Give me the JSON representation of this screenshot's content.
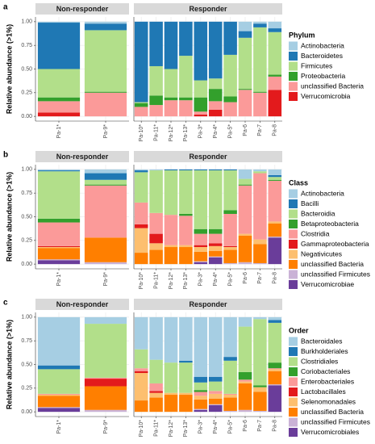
{
  "chart_data": [
    {
      "type": "bar",
      "panel_label": "a",
      "ylabel": "Relative abundance (>1%)",
      "legend_title": "Phylum",
      "facets": [
        {
          "name": "Non-responder",
          "categories": [
            "Pa-1*",
            "Pa-9*"
          ]
        },
        {
          "name": "Responder",
          "categories": [
            "Pa-10*",
            "Pa-11*",
            "Pa-12*",
            "Pa-13*",
            "Pa-3*",
            "Pa-4*",
            "Pa-5*",
            "Pa-6",
            "Pa-7",
            "Pa-8"
          ]
        }
      ],
      "ylim": [
        -0.05,
        1.05
      ],
      "yticks": [
        {
          "value": 0,
          "label": "0.00"
        },
        {
          "value": 0.25,
          "label": "0.25"
        },
        {
          "value": 0.5,
          "label": "0.50"
        },
        {
          "value": 0.75,
          "label": "0.75"
        },
        {
          "value": 1,
          "label": "1.00"
        }
      ],
      "series": [
        {
          "name": "Actinobacteria",
          "color": "#a6cee3",
          "values": [
            0.01,
            0.02,
            0,
            0,
            0,
            0,
            0,
            0,
            0,
            0.1,
            0.02,
            0.07
          ]
        },
        {
          "name": "Bacteroidetes",
          "color": "#1f78b4",
          "values": [
            0.49,
            0.07,
            0.85,
            0.47,
            0.5,
            0.36,
            0.62,
            0.6,
            0.35,
            0.07,
            0.04,
            0.04
          ]
        },
        {
          "name": "Firmicutes",
          "color": "#b2df8a",
          "values": [
            0.3,
            0.65,
            0.01,
            0.31,
            0.3,
            0.44,
            0.18,
            0.11,
            0.44,
            0.54,
            0.68,
            0.45
          ]
        },
        {
          "name": "Proteobacteria",
          "color": "#33a02c",
          "values": [
            0.04,
            0.01,
            0.04,
            0.1,
            0.03,
            0.03,
            0.15,
            0.13,
            0.06,
            0.01,
            0.01,
            0.02
          ]
        },
        {
          "name": "unclassified Bacteria",
          "color": "#fb9a99",
          "values": [
            0.12,
            0.25,
            0.1,
            0.12,
            0.17,
            0.17,
            0.03,
            0.09,
            0.15,
            0.28,
            0.25,
            0.14
          ]
        },
        {
          "name": "Verrucomicrobia",
          "color": "#e31a1c",
          "values": [
            0.04,
            0,
            0,
            0,
            0,
            0,
            0.02,
            0.07,
            0,
            0,
            0,
            0.28
          ]
        }
      ]
    },
    {
      "type": "bar",
      "panel_label": "b",
      "ylabel": "Relative abundance (>1%)",
      "legend_title": "Class",
      "facets": [
        {
          "name": "Non-responder",
          "categories": [
            "Pa-1*",
            "Pa-9*"
          ]
        },
        {
          "name": "Responder",
          "categories": [
            "Pa-10*",
            "Pa-11*",
            "Pa-12*",
            "Pa-13*",
            "Pa-3*",
            "Pa-4*",
            "Pa-5*",
            "Pa-6",
            "Pa-7",
            "Pa-8"
          ]
        }
      ],
      "ylim": [
        -0.05,
        1.05
      ],
      "yticks": [
        {
          "value": 0,
          "label": "0.00"
        },
        {
          "value": 0.25,
          "label": "0.25"
        },
        {
          "value": 0.5,
          "label": "0.50"
        },
        {
          "value": 0.75,
          "label": "0.75"
        },
        {
          "value": 1,
          "label": "1.00"
        }
      ],
      "series": [
        {
          "name": "Actinobacteria",
          "color": "#a6cee3",
          "values": [
            0.01,
            0.04,
            0.01,
            0.01,
            0,
            0,
            0,
            0,
            0,
            0.1,
            0.02,
            0.06
          ]
        },
        {
          "name": "Bacilli",
          "color": "#1f78b4",
          "values": [
            0.01,
            0.07,
            0.02,
            0,
            0.01,
            0.01,
            0.01,
            0.01,
            0.01,
            0,
            0,
            0.02
          ]
        },
        {
          "name": "Bacteroidia",
          "color": "#b2df8a",
          "values": [
            0.5,
            0.05,
            0.32,
            0.45,
            0.47,
            0.46,
            0.62,
            0.62,
            0.42,
            0.06,
            0.02,
            0.03
          ]
        },
        {
          "name": "Betaproteobacteria",
          "color": "#33a02c",
          "values": [
            0.04,
            0.01,
            0,
            0,
            0,
            0.02,
            0.05,
            0.05,
            0.04,
            0.01,
            0,
            0.01
          ]
        },
        {
          "name": "Clostridia",
          "color": "#fb9a99",
          "values": [
            0.25,
            0.55,
            0.23,
            0.22,
            0.32,
            0.31,
            0.12,
            0.1,
            0.34,
            0.51,
            0.7,
            0.43
          ]
        },
        {
          "name": "Gammaproteobacteria",
          "color": "#e31a1c",
          "values": [
            0.01,
            0,
            0.04,
            0.1,
            0,
            0,
            0.02,
            0.03,
            0.01,
            0,
            0,
            0
          ]
        },
        {
          "name": "Negativicutes",
          "color": "#fdbf6f",
          "values": [
            0.01,
            0,
            0.26,
            0.07,
            0.02,
            0.02,
            0.05,
            0.05,
            0.03,
            0.02,
            0.05,
            0.02
          ]
        },
        {
          "name": "unclassified Bacteria",
          "color": "#ff7f00",
          "values": [
            0.12,
            0.26,
            0.12,
            0.15,
            0.18,
            0.18,
            0.1,
            0.06,
            0.14,
            0.28,
            0.2,
            0.14
          ]
        },
        {
          "name": "unclassified Firmicutes",
          "color": "#cab2d6",
          "values": [
            0.01,
            0.02,
            0,
            0,
            0,
            0,
            0.01,
            0.01,
            0.01,
            0.02,
            0.01,
            0.01
          ]
        },
        {
          "name": "Verrucomicrobiae",
          "color": "#6a3d9a",
          "values": [
            0.04,
            0,
            0,
            0,
            0,
            0,
            0.02,
            0.07,
            0,
            0,
            0,
            0.28
          ]
        }
      ]
    },
    {
      "type": "bar",
      "panel_label": "c",
      "ylabel": "Relative abundance (>1%)",
      "legend_title": "Order",
      "facets": [
        {
          "name": "Non-responder",
          "categories": [
            "Pa-1*",
            "Pa-9*"
          ]
        },
        {
          "name": "Responder",
          "categories": [
            "Pa-10*",
            "Pa-11*",
            "Pa-12*",
            "Pa-13*",
            "Pa-3*",
            "Pa-4*",
            "Pa-5*",
            "Pa-6",
            "Pa-7",
            "Pa-8"
          ]
        }
      ],
      "ylim": [
        -0.05,
        1.05
      ],
      "yticks": [
        {
          "value": 0,
          "label": "0.00"
        },
        {
          "value": 0.25,
          "label": "0.25"
        },
        {
          "value": 0.5,
          "label": "0.50"
        },
        {
          "value": 0.75,
          "label": "0.75"
        },
        {
          "value": 1,
          "label": "1.00"
        }
      ],
      "series": [
        {
          "name": "Bacteroidales",
          "color": "#a6cee3",
          "values": [
            0.51,
            0.07,
            0.34,
            0.45,
            0.48,
            0.46,
            0.63,
            0.63,
            0.42,
            0.1,
            0.02,
            0.03
          ]
        },
        {
          "name": "Burkholderiales",
          "color": "#1f78b4",
          "values": [
            0.04,
            0,
            0,
            0,
            0,
            0.02,
            0.06,
            0.05,
            0.04,
            0,
            0,
            0.03
          ]
        },
        {
          "name": "Clostridiales",
          "color": "#b2df8a",
          "values": [
            0.26,
            0.57,
            0.2,
            0.25,
            0.32,
            0.32,
            0.08,
            0.1,
            0.35,
            0.48,
            0.7,
            0.42
          ]
        },
        {
          "name": "Coriobacteriales",
          "color": "#33a02c",
          "values": [
            0,
            0,
            0,
            0,
            0,
            0,
            0.02,
            0,
            0,
            0.08,
            0.02,
            0.06
          ]
        },
        {
          "name": "Enterobacteriales",
          "color": "#fb9a99",
          "values": [
            0.01,
            0.01,
            0.03,
            0.08,
            0,
            0,
            0.04,
            0.03,
            0.01,
            0.02,
            0,
            0.01
          ]
        },
        {
          "name": "Lactobacillales",
          "color": "#e31a1c",
          "values": [
            0,
            0.08,
            0.02,
            0.02,
            0,
            0,
            0,
            0,
            0,
            0,
            0,
            0
          ]
        },
        {
          "name": "Selenomonadales",
          "color": "#fdbf6f",
          "values": [
            0.01,
            0,
            0.29,
            0.05,
            0.02,
            0.02,
            0.04,
            0.05,
            0.03,
            0.02,
            0.05,
            0.02
          ]
        },
        {
          "name": "unclassified Bacteria",
          "color": "#ff7f00",
          "values": [
            0.12,
            0.25,
            0.12,
            0.15,
            0.18,
            0.18,
            0.1,
            0.06,
            0.14,
            0.28,
            0.2,
            0.14
          ]
        },
        {
          "name": "unclassified Firmicutes",
          "color": "#cab2d6",
          "values": [
            0.01,
            0.02,
            0,
            0,
            0,
            0,
            0.01,
            0.01,
            0.01,
            0.02,
            0.01,
            0.01
          ]
        },
        {
          "name": "Verrucomicrobiales",
          "color": "#6a3d9a",
          "values": [
            0.04,
            0,
            0,
            0,
            0,
            0,
            0.02,
            0.07,
            0,
            0,
            0,
            0.28
          ]
        }
      ]
    }
  ]
}
